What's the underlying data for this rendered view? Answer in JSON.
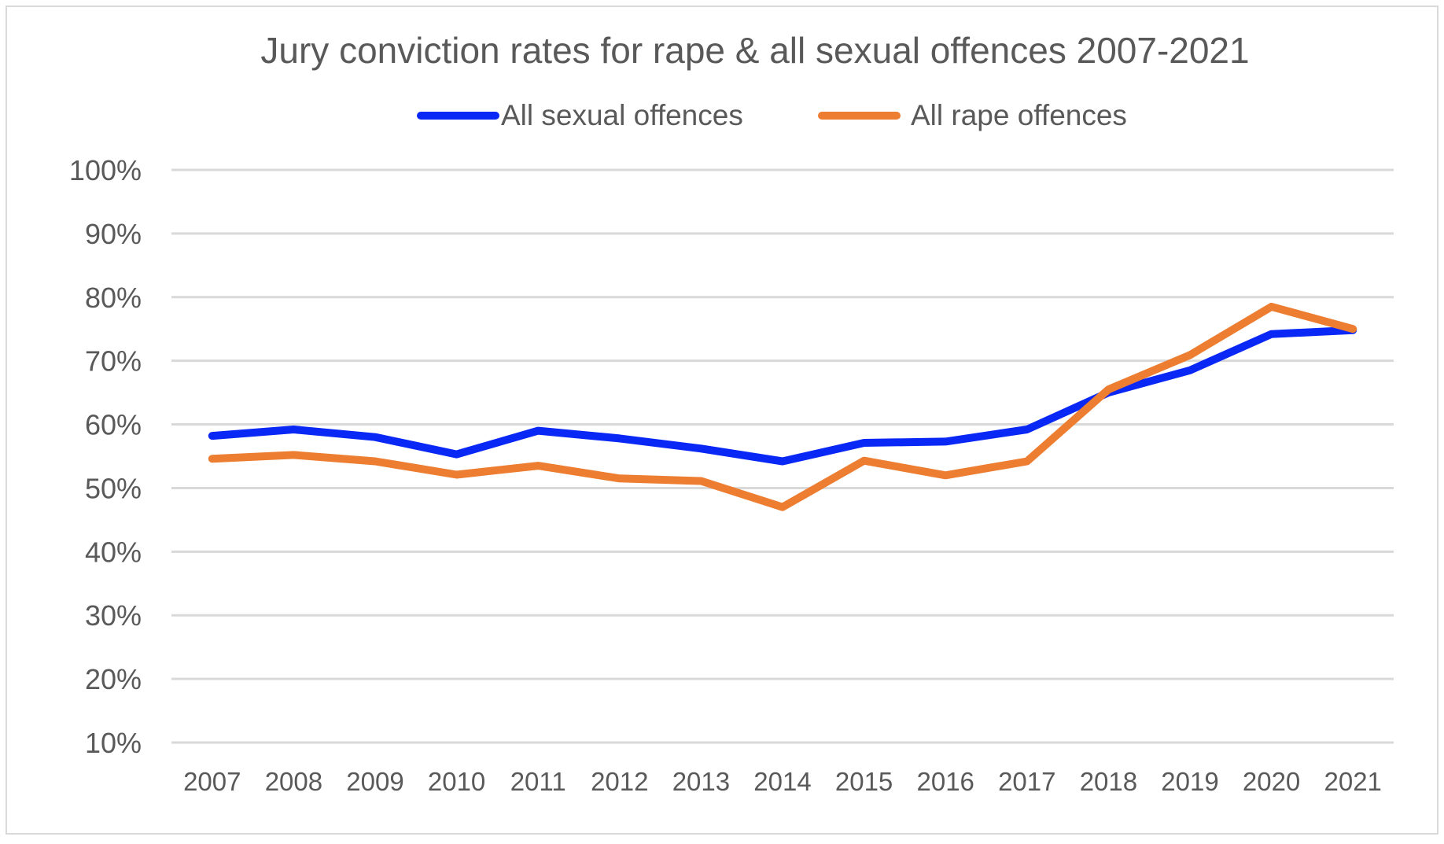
{
  "chart_data": {
    "type": "line",
    "title": "Jury conviction rates for rape & all sexual offences 2007-2021",
    "xlabel": "",
    "ylabel": "",
    "categories": [
      "2007",
      "2008",
      "2009",
      "2010",
      "2011",
      "2012",
      "2013",
      "2014",
      "2015",
      "2016",
      "2017",
      "2018",
      "2019",
      "2020",
      "2021"
    ],
    "series": [
      {
        "name": "All sexual offences",
        "color": "#0A28F5",
        "values": [
          58.2,
          59.2,
          58.0,
          55.3,
          59.0,
          57.8,
          56.2,
          54.2,
          57.1,
          57.3,
          59.2,
          65.0,
          68.5,
          74.2,
          74.8
        ]
      },
      {
        "name": "All rape offences",
        "color": "#ED7D31",
        "values": [
          54.6,
          55.2,
          54.2,
          52.1,
          53.5,
          51.5,
          51.1,
          47.0,
          54.3,
          52.0,
          54.2,
          65.5,
          70.9,
          78.5,
          75.0
        ]
      }
    ],
    "ylim": [
      10,
      100
    ],
    "yticks": [
      10,
      20,
      30,
      40,
      50,
      60,
      70,
      80,
      90,
      100
    ],
    "ytick_labels": [
      "10%",
      "20%",
      "30%",
      "40%",
      "50%",
      "60%",
      "70%",
      "80%",
      "90%",
      "100%"
    ],
    "grid": true,
    "legend_position": "top-center",
    "grid_color": "#D9D9D9",
    "text_color": "#595959",
    "border_color": "#D9D9D9"
  }
}
